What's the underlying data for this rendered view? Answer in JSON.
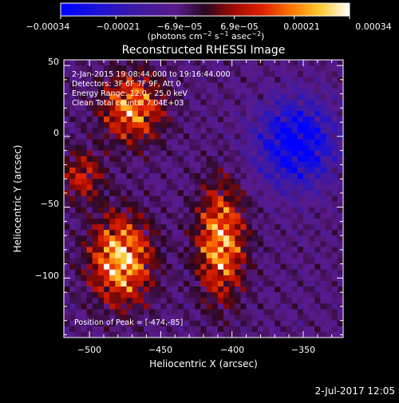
{
  "chart_data": {
    "type": "heatmap",
    "title": "Reconstructed RHESSI Image",
    "xlabel": "Heliocentric X (arcsec)",
    "ylabel": "Heliocentric Y (arcsec)",
    "xlim": [
      -518,
      -322
    ],
    "ylim": [
      -142,
      54
    ],
    "x_ticks": [
      -500,
      -450,
      -400,
      -350
    ],
    "x_tick_labels": [
      "−500",
      "−450",
      "−400",
      "−350"
    ],
    "y_ticks": [
      50,
      0,
      -50,
      -100
    ],
    "y_tick_labels": [
      "50",
      "0",
      "−50",
      "−100"
    ],
    "colorbar": {
      "range": [
        -0.00034,
        0.00034
      ],
      "ticks": [
        -0.00034,
        -0.00021,
        -6.9e-05,
        6.9e-05,
        0.00021,
        0.00034
      ],
      "tick_labels": [
        "−0.00034",
        "−0.00021",
        "−6.9e−05",
        "6.9e−05",
        "0.00021",
        "0.00034"
      ],
      "units_pre": "(photons cm",
      "units_exp1": "−2",
      "units_mid1": " s",
      "units_exp2": "−1",
      "units_mid2": " asec",
      "units_exp3": "−2",
      "units_post": ")"
    },
    "sources": [
      {
        "x": -478,
        "y": -87,
        "sigma_x": 14,
        "sigma_y": 20,
        "peak": 0.00034
      },
      {
        "x": -408,
        "y": -75,
        "sigma_x": 11,
        "sigma_y": 26,
        "peak": 0.0003
      },
      {
        "x": -470,
        "y": 20,
        "sigma_x": 14,
        "sigma_y": 16,
        "peak": 0.00027
      },
      {
        "x": -505,
        "y": -28,
        "sigma_x": 10,
        "sigma_y": 12,
        "peak": 0.00016
      },
      {
        "x": -355,
        "y": -5,
        "sigma_x": 18,
        "sigma_y": 20,
        "peak": -0.0003
      }
    ],
    "peak_position": [
      -474,
      -85
    ]
  },
  "annotations": {
    "time": "2-Jan-2015 19:08:44.000 to 19:16:44.000",
    "detectors": "Detectors: 3F 6F 7F 9F, Att 0",
    "energy": "Energy Range: 12.0 - 25.0 keV",
    "method": "Clean     Total counts: 7.04E+03",
    "peak": "Position of Peak = [-474,-85]"
  },
  "footer_date": "2-Jul-2017 12:05",
  "colors": {
    "background": "#000000",
    "foreground": "#ffffff"
  }
}
